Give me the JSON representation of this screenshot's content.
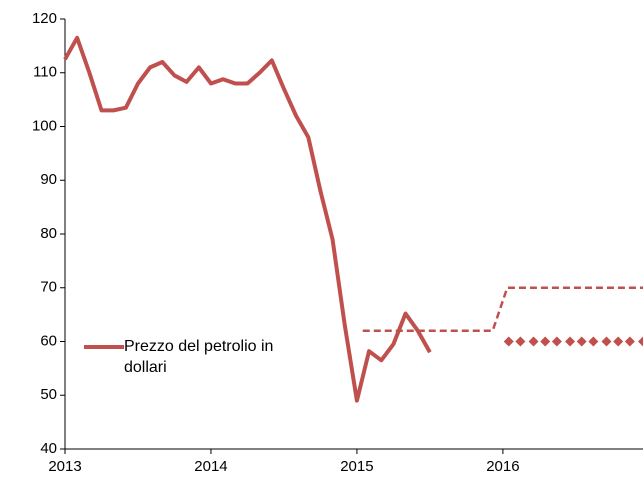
{
  "chart_data": {
    "type": "line",
    "xlim": [
      2013,
      2016.96
    ],
    "xticks": [
      2013,
      2014,
      2015,
      2016
    ],
    "ylim": [
      40,
      120
    ],
    "yticks": [
      40,
      50,
      60,
      70,
      80,
      90,
      100,
      110,
      120
    ],
    "legend": "left",
    "series": [
      {
        "name": "Prezzo del petrolio in dollari",
        "color": "#c0504d",
        "style": "solid",
        "x": [
          2013,
          2013.083,
          2013.167,
          2013.25,
          2013.333,
          2013.417,
          2013.5,
          2013.583,
          2013.667,
          2013.75,
          2013.833,
          2013.917,
          2014,
          2014.083,
          2014.167,
          2014.25,
          2014.333,
          2014.417,
          2014.5,
          2014.583,
          2014.667,
          2014.75,
          2014.833,
          2014.917,
          2015,
          2015.083,
          2015.167,
          2015.25,
          2015.333,
          2015.417,
          2015.5
        ],
        "values": [
          112.5,
          116.5,
          110,
          103,
          103,
          103.5,
          108,
          111,
          112,
          109.5,
          108.3,
          111,
          108,
          108.8,
          108,
          108,
          110,
          112.3,
          107,
          102,
          98,
          88,
          79,
          63,
          49,
          58.2,
          56.5,
          59.5,
          65.2,
          62,
          58
        ]
      },
      {
        "color": "#c0504d",
        "style": "dashed",
        "x": [
          2015.04,
          2015.93,
          2016.03,
          2016.96
        ],
        "values": [
          62,
          62,
          70,
          70
        ]
      },
      {
        "color": "#c0504d",
        "style": "markers",
        "x": [
          2016.04,
          2016.12,
          2016.21,
          2016.29,
          2016.37,
          2016.46,
          2016.54,
          2016.62,
          2016.71,
          2016.79,
          2016.87,
          2016.96
        ],
        "values": [
          60,
          60,
          60,
          60,
          60,
          60,
          60,
          60,
          60,
          60,
          60,
          60
        ]
      }
    ]
  }
}
